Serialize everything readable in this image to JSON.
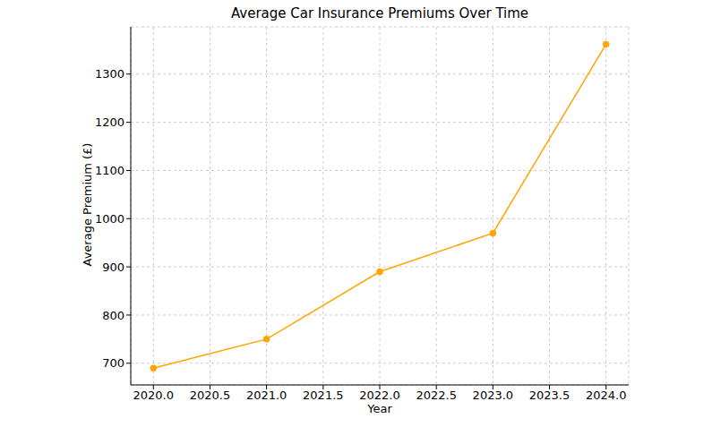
{
  "chart_data": {
    "type": "line",
    "title": "Average Car Insurance Premiums Over Time",
    "x_label": "Year",
    "y_label": "Average Premium (£)",
    "x": [
      2020,
      2021,
      2022,
      2023,
      2024
    ],
    "values": [
      690,
      750,
      890,
      970,
      1362
    ],
    "color": "#ffa500",
    "marker": "o",
    "grid": true,
    "xlim": [
      2019.8,
      2024.2
    ],
    "xticks": [
      {
        "value": 2020,
        "label": "2020.0"
      },
      {
        "value": 2020.5,
        "label": "2020.5"
      },
      {
        "value": 2021,
        "label": "2021.0"
      },
      {
        "value": 2021.5,
        "label": "2021.5"
      },
      {
        "value": 2022,
        "label": "2022.0"
      },
      {
        "value": 2022.5,
        "label": "2022.5"
      },
      {
        "value": 2023,
        "label": "2023.0"
      },
      {
        "value": 2023.5,
        "label": "2023.5"
      },
      {
        "value": 2024,
        "label": "2024.0"
      }
    ],
    "ylim": [
      655,
      1398
    ],
    "yticks": [
      700,
      800,
      900,
      1000,
      1100,
      1200,
      1300
    ]
  }
}
